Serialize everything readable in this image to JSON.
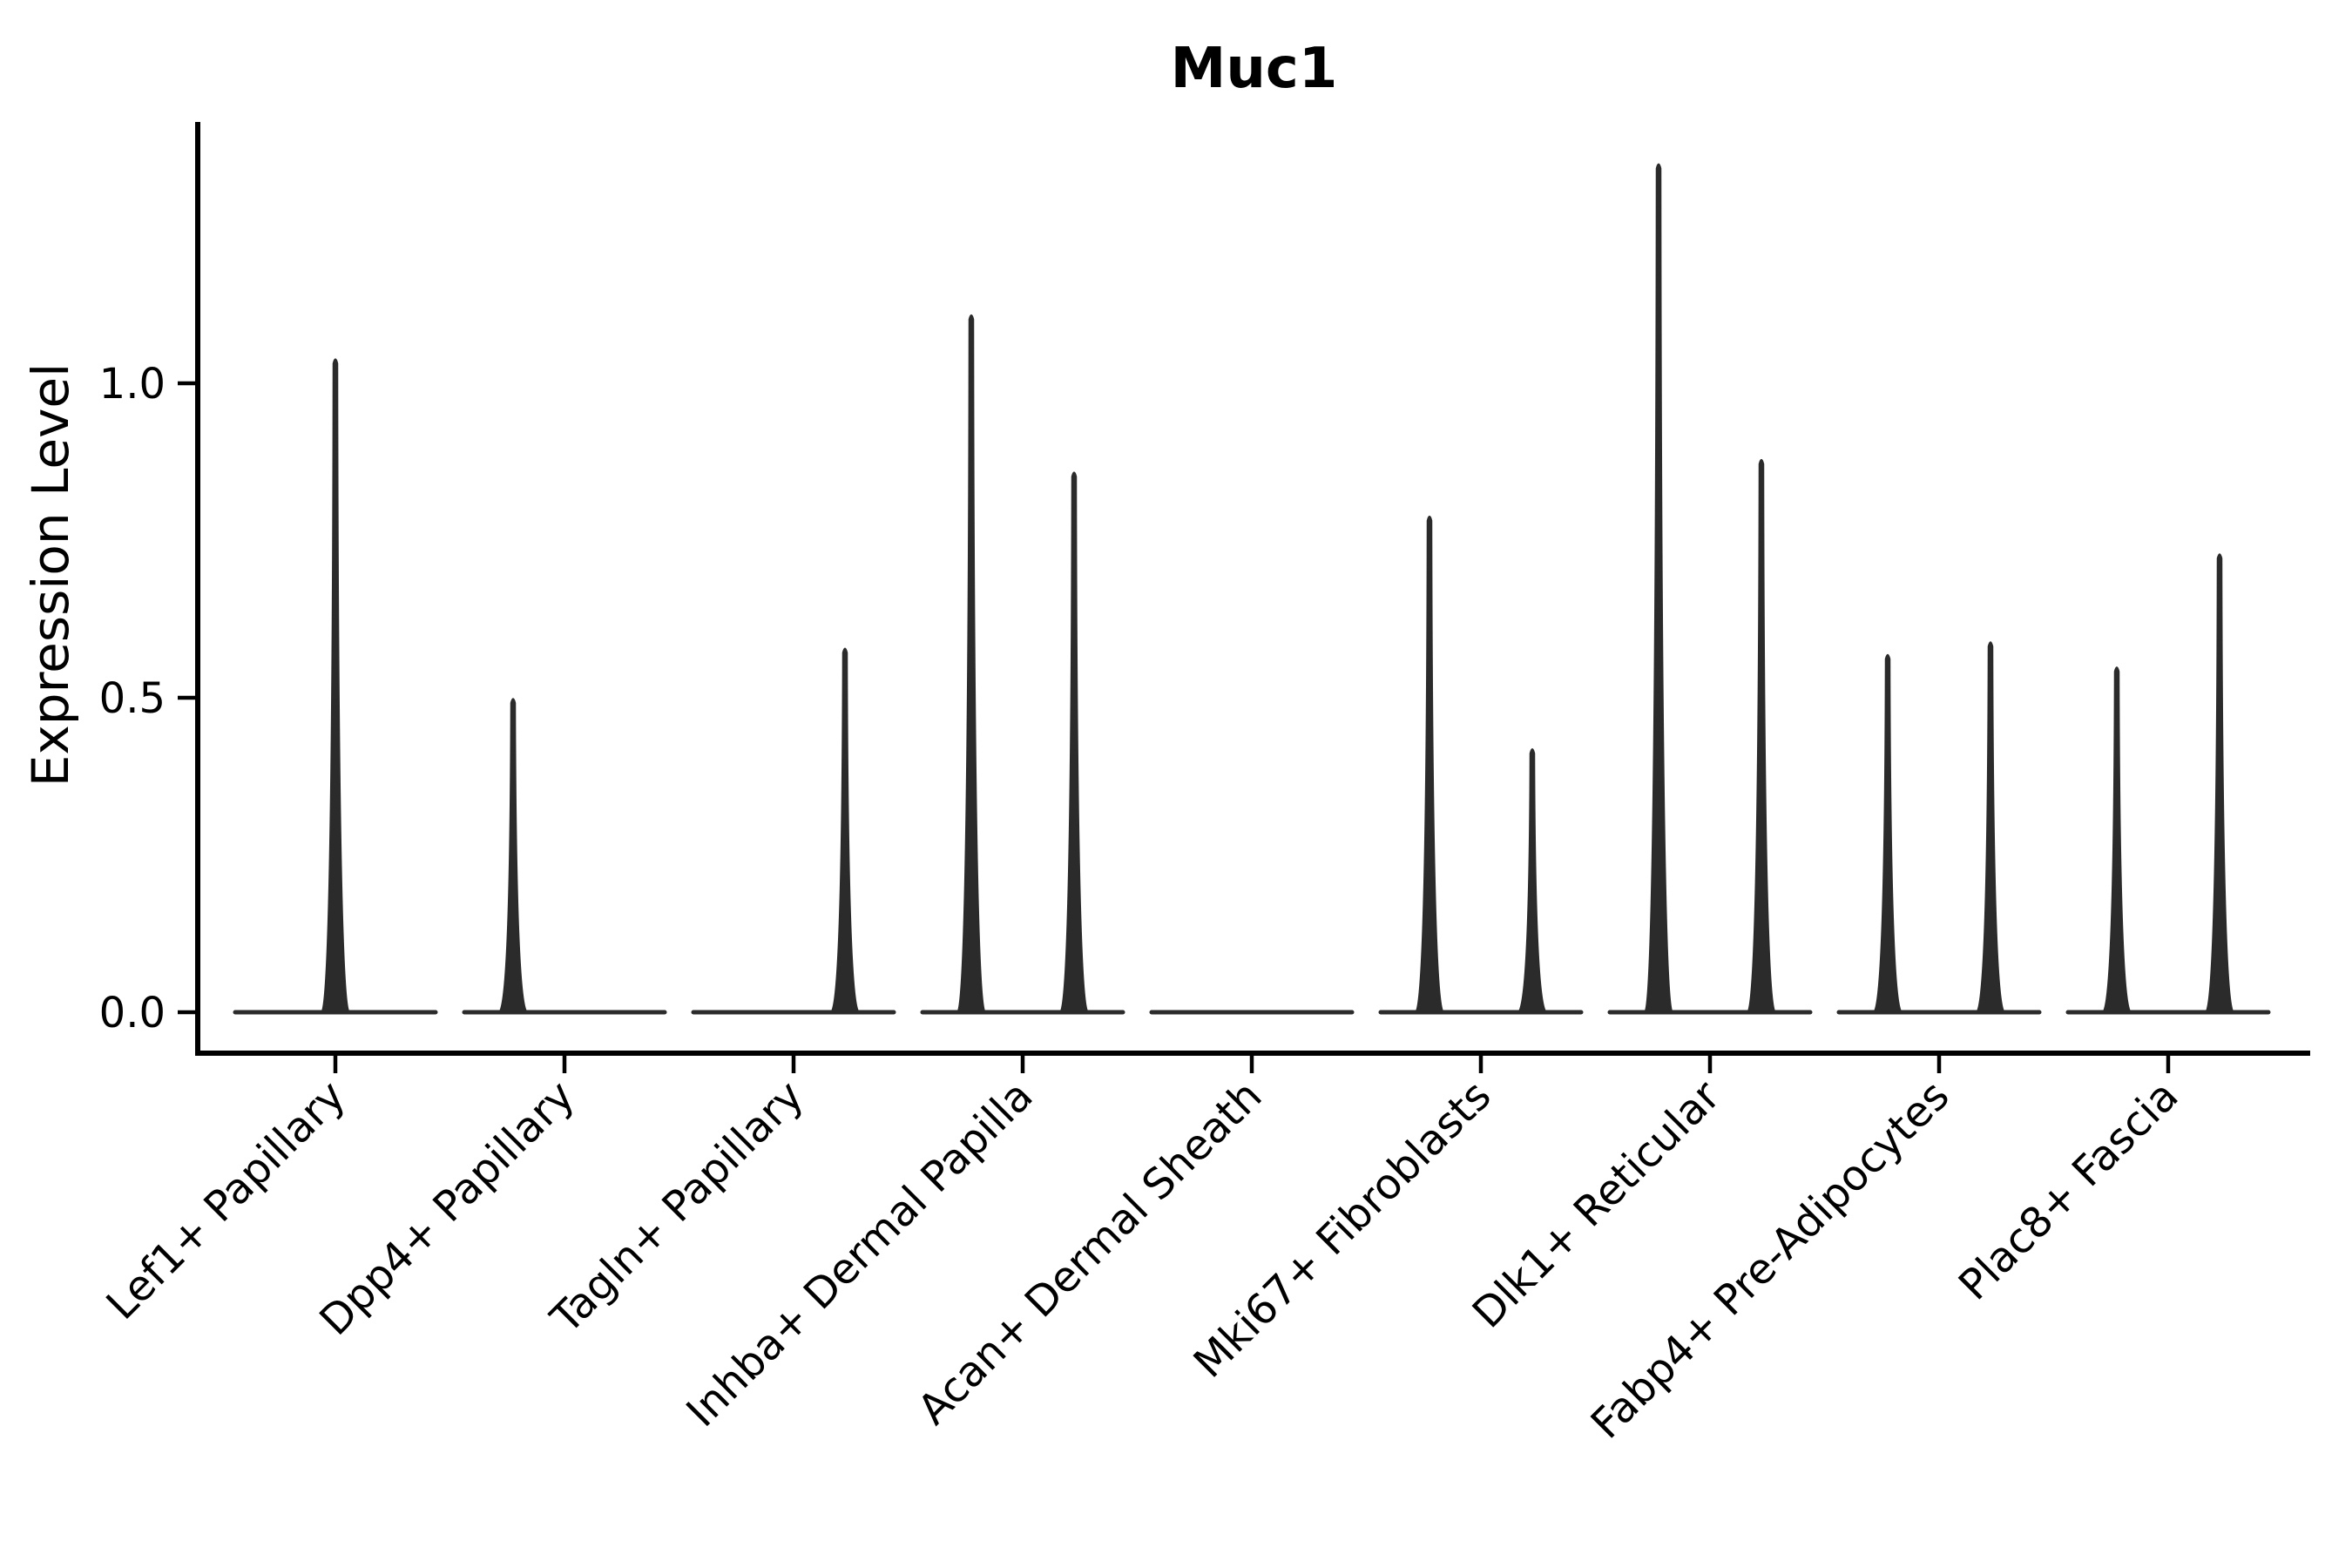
{
  "chart_data": {
    "type": "violin",
    "title": "Muc1",
    "xlabel": "",
    "ylabel": "Expression Level",
    "ylim": [
      0,
      1.42
    ],
    "yticks": [
      0.0,
      0.5,
      1.0
    ],
    "ytick_labels": [
      "0.0",
      "0.5",
      "1.0"
    ],
    "grid": false,
    "legend": "none",
    "baseline_value": 0.0,
    "categories": [
      "Lef1+ Papillary",
      "Dpp4+ Papillary",
      "Tagln+ Papillary",
      "Inhba+ Dermal Papilla",
      "Acan+ Dermal Sheath",
      "Mki67+ Fibroblasts",
      "Dlk1+ Reticular",
      "Fabp4+ Pre-Adipocytes",
      "Plac8+ Fascia"
    ],
    "violins": [
      {
        "category": "Lef1+ Papillary",
        "spikes": [
          {
            "side": "center",
            "peak": 1.04
          }
        ]
      },
      {
        "category": "Dpp4+ Papillary",
        "spikes": [
          {
            "side": "left",
            "peak": 0.5
          }
        ]
      },
      {
        "category": "Tagln+ Papillary",
        "spikes": [
          {
            "side": "right",
            "peak": 0.58
          }
        ]
      },
      {
        "category": "Inhba+ Dermal Papilla",
        "spikes": [
          {
            "side": "left",
            "peak": 1.11
          },
          {
            "side": "right",
            "peak": 0.86
          }
        ]
      },
      {
        "category": "Acan+ Dermal Sheath",
        "spikes": []
      },
      {
        "category": "Mki67+ Fibroblasts",
        "spikes": [
          {
            "side": "left",
            "peak": 0.79
          },
          {
            "side": "right",
            "peak": 0.42
          }
        ]
      },
      {
        "category": "Dlk1+ Reticular",
        "spikes": [
          {
            "side": "left",
            "peak": 1.35
          },
          {
            "side": "right",
            "peak": 0.88
          }
        ]
      },
      {
        "category": "Fabp4+ Pre-Adipocytes",
        "spikes": [
          {
            "side": "left",
            "peak": 0.57
          },
          {
            "side": "right",
            "peak": 0.59
          }
        ]
      },
      {
        "category": "Plac8+ Fascia",
        "spikes": [
          {
            "side": "left",
            "peak": 0.55
          },
          {
            "side": "right",
            "peak": 0.73
          }
        ]
      }
    ]
  },
  "colors": {
    "violin": "#2b2b2b",
    "axis": "#000000",
    "text": "#000000",
    "background": "#ffffff"
  }
}
